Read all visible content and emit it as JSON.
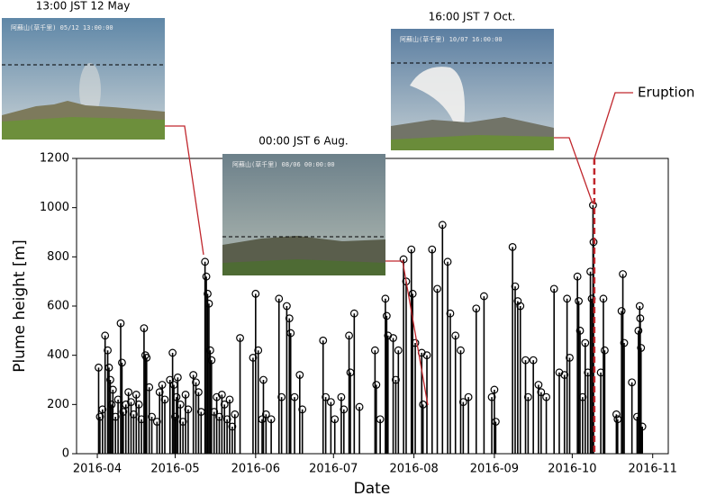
{
  "chart_data": {
    "type": "stem",
    "xlabel": "Date",
    "ylabel": "Plume height [m]",
    "color": "#000000",
    "xlim": [
      84,
      312
    ],
    "ylim": [
      0,
      1200
    ],
    "xticks": [
      {
        "value": 92,
        "label": "2016-04"
      },
      {
        "value": 122,
        "label": "2016-05"
      },
      {
        "value": 153,
        "label": "2016-06"
      },
      {
        "value": 183,
        "label": "2016-07"
      },
      {
        "value": 214,
        "label": "2016-08"
      },
      {
        "value": 245,
        "label": "2016-09"
      },
      {
        "value": 275,
        "label": "2016-10"
      },
      {
        "value": 306,
        "label": "2016-11"
      }
    ],
    "yticks": [
      0,
      200,
      400,
      600,
      800,
      1000,
      1200
    ],
    "x": [
      92.5,
      93,
      94,
      95,
      96,
      96.5,
      97,
      97.5,
      98,
      99,
      100,
      101,
      101.5,
      102,
      103,
      104,
      105,
      106,
      107,
      108,
      109,
      110,
      110.5,
      111,
      112,
      113,
      115,
      116,
      117,
      118,
      120,
      121,
      121.5,
      122,
      122.5,
      123,
      124,
      125,
      126,
      127,
      129,
      130,
      131,
      132,
      133.5,
      134,
      134.5,
      135,
      135.5,
      136,
      137,
      138,
      139,
      140,
      141,
      142,
      143,
      144,
      145,
      147,
      152,
      153,
      154,
      155.5,
      156,
      157,
      159,
      162,
      163,
      165,
      166,
      166.5,
      168,
      170,
      171,
      179,
      180,
      182,
      183.5,
      186,
      187,
      189,
      189.5,
      191,
      193,
      199,
      199.5,
      201,
      203,
      203.5,
      204,
      206,
      207,
      208,
      210,
      211,
      213,
      213.5,
      214.5,
      217,
      217.5,
      219,
      221,
      223,
      225,
      227,
      228,
      230,
      232,
      233,
      235,
      238,
      241,
      244,
      245,
      245.5,
      252,
      253,
      254,
      255,
      257,
      258,
      260,
      262,
      263,
      265,
      268,
      270,
      272,
      273,
      274,
      277,
      277.5,
      278,
      279,
      280,
      281,
      282,
      282.5,
      283,
      283.2,
      286,
      287,
      287.5,
      292,
      292.5,
      294,
      294.5,
      295,
      298,
      300,
      300.5,
      301,
      301.2,
      301.5,
      302
    ],
    "values": [
      350,
      150,
      180,
      480,
      420,
      350,
      300,
      200,
      260,
      150,
      220,
      530,
      370,
      170,
      200,
      250,
      210,
      160,
      240,
      200,
      140,
      510,
      400,
      390,
      270,
      150,
      130,
      250,
      280,
      220,
      300,
      410,
      280,
      150,
      230,
      310,
      200,
      130,
      240,
      180,
      320,
      290,
      250,
      170,
      780,
      720,
      650,
      610,
      420,
      380,
      170,
      230,
      150,
      240,
      200,
      140,
      220,
      110,
      160,
      470,
      390,
      650,
      420,
      140,
      300,
      160,
      140,
      630,
      230,
      600,
      550,
      490,
      230,
      320,
      180,
      460,
      230,
      210,
      140,
      230,
      180,
      480,
      330,
      570,
      190,
      420,
      280,
      140,
      630,
      560,
      480,
      470,
      300,
      420,
      790,
      700,
      830,
      650,
      450,
      410,
      200,
      400,
      830,
      670,
      930,
      780,
      570,
      480,
      420,
      210,
      230,
      590,
      640,
      230,
      260,
      130,
      840,
      680,
      620,
      600,
      380,
      230,
      380,
      280,
      250,
      230,
      670,
      330,
      320,
      630,
      390,
      720,
      620,
      500,
      230,
      450,
      330,
      740,
      630,
      1010,
      860,
      330,
      630,
      420,
      160,
      140,
      580,
      730,
      450,
      290,
      150,
      500,
      600,
      550,
      430,
      110
    ],
    "annotation": {
      "label": "Eruption",
      "x": 283.5,
      "color": "#c0272d"
    },
    "insets": [
      {
        "caption": "13:00 JST 12 May",
        "stamp": "阿蘇山(草千里)   05/12 13:00:00"
      },
      {
        "caption": "00:00 JST 6 Aug.",
        "stamp": "阿蘇山(草千里)   08/06 00:00:00"
      },
      {
        "caption": "16:00 JST 7 Oct.",
        "stamp": "阿蘇山(草千里)   10/07 16:00:00"
      }
    ]
  }
}
